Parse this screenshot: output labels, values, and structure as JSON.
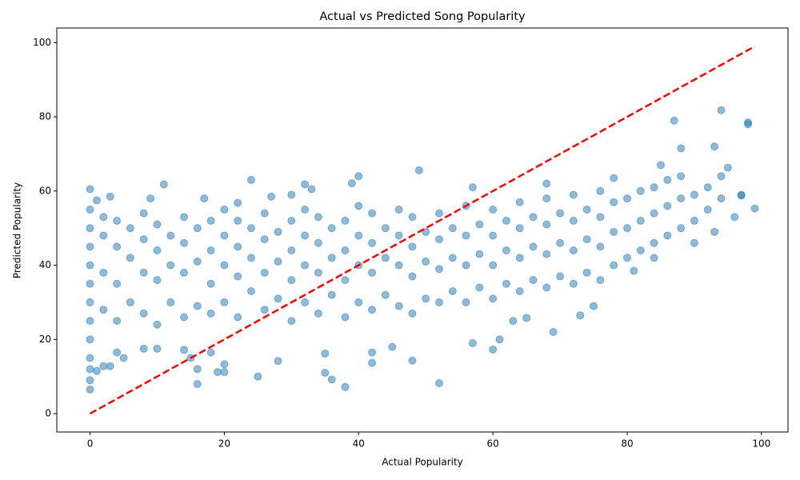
{
  "chart_data": {
    "type": "scatter",
    "title": "Actual vs Predicted Song Popularity",
    "x_label": "Actual Popularity",
    "y_label": "Predicted Popularity",
    "xlim": [
      -4.95,
      103.95
    ],
    "ylim": [
      -4.95,
      103.95
    ],
    "xticks": [
      0,
      20,
      40,
      60,
      80,
      100
    ],
    "yticks": [
      0,
      20,
      40,
      60,
      80,
      100
    ],
    "grid": false,
    "series": [
      {
        "color": "#1f77b4",
        "x": [
          0,
          0,
          0,
          0,
          0,
          0,
          0,
          0,
          0,
          2,
          2,
          2,
          2,
          4,
          4,
          4,
          4,
          6,
          6,
          6,
          8,
          8,
          8,
          8,
          10,
          10,
          10,
          10,
          12,
          12,
          12,
          14,
          14,
          14,
          14,
          16,
          16,
          16,
          18,
          18,
          18,
          18,
          20,
          20,
          20,
          20,
          22,
          22,
          22,
          22,
          24,
          24,
          24,
          26,
          26,
          26,
          26,
          28,
          28,
          28,
          30,
          30,
          30,
          30,
          32,
          32,
          32,
          32,
          34,
          34,
          34,
          34,
          36,
          36,
          36,
          38,
          38,
          38,
          38,
          40,
          40,
          40,
          40,
          42,
          42,
          42,
          42,
          44,
          44,
          44,
          46,
          46,
          46,
          46,
          48,
          48,
          48,
          48,
          50,
          50,
          50,
          52,
          52,
          52,
          52,
          54,
          54,
          54,
          56,
          56,
          56,
          56,
          58,
          58,
          58,
          60,
          60,
          60,
          60,
          62,
          62,
          62,
          64,
          64,
          64,
          64,
          66,
          66,
          66,
          68,
          68,
          68,
          68,
          70,
          70,
          70,
          72,
          72,
          72,
          72,
          74,
          74,
          74,
          76,
          76,
          76,
          76,
          78,
          78,
          78,
          80,
          80,
          80,
          82,
          82,
          82,
          84,
          84,
          84,
          86,
          86,
          86,
          88,
          88,
          88,
          90,
          90,
          92,
          92,
          94,
          94,
          97,
          0,
          0,
          0,
          0,
          1,
          2,
          3,
          4,
          5,
          8,
          10,
          11,
          14,
          15,
          16,
          16,
          17,
          18,
          19,
          20,
          20,
          24,
          25,
          28,
          32,
          35,
          35,
          36,
          38,
          39,
          40,
          42,
          42,
          45,
          48,
          49,
          52,
          57,
          60,
          61,
          63,
          65,
          69,
          73,
          75,
          78,
          85,
          87,
          88,
          90,
          93,
          93,
          94,
          95,
          96,
          97,
          98,
          98,
          99,
          81,
          84,
          68,
          57,
          1,
          3,
          9,
          22,
          27,
          30,
          33
        ],
        "values": [
          20,
          30,
          40,
          50,
          55,
          35,
          45,
          25,
          15,
          28,
          38,
          48,
          53,
          25,
          35,
          45,
          52,
          30,
          42,
          50,
          27,
          38,
          47,
          54,
          24,
          36,
          44,
          51,
          30,
          40,
          48,
          26,
          38,
          46,
          53,
          29,
          41,
          50,
          27,
          35,
          44,
          52,
          30,
          40,
          48,
          55,
          26,
          37,
          45,
          52,
          33,
          42,
          50,
          28,
          38,
          47,
          54,
          31,
          41,
          49,
          25,
          36,
          44,
          52,
          30,
          40,
          48,
          55,
          27,
          38,
          46,
          53,
          32,
          42,
          50,
          26,
          36,
          44,
          52,
          30,
          40,
          48,
          56,
          28,
          38,
          46,
          54,
          32,
          42,
          50,
          29,
          40,
          48,
          55,
          27,
          37,
          45,
          53,
          31,
          41,
          49,
          30,
          39,
          47,
          54,
          33,
          42,
          50,
          30,
          40,
          48,
          56,
          34,
          43,
          51,
          31,
          40,
          48,
          55,
          35,
          44,
          52,
          33,
          42,
          50,
          57,
          36,
          45,
          53,
          34,
          43,
          51,
          58,
          37,
          46,
          54,
          35,
          44,
          52,
          59,
          38,
          47,
          55,
          36,
          45,
          53,
          60,
          40,
          49,
          57,
          42,
          50,
          58,
          44,
          52,
          60,
          46,
          54,
          61,
          48,
          56,
          63,
          50,
          58,
          64,
          52,
          59,
          55,
          61,
          58,
          64,
          59,
          6.5,
          9,
          12,
          60.5,
          11.5,
          12.8,
          12.8,
          16.5,
          15,
          17.5,
          17.5,
          61.8,
          17.2,
          15,
          8,
          12,
          58,
          16.5,
          11.2,
          11.2,
          13.3,
          63,
          10,
          14.2,
          61.8,
          11,
          16.2,
          9.2,
          7.2,
          62.1,
          64,
          13.7,
          16.5,
          18,
          14.3,
          65.6,
          8.2,
          19,
          17.3,
          20,
          25,
          25.8,
          22,
          26.5,
          29,
          63.5,
          67,
          79,
          71.5,
          46,
          72,
          49,
          81.8,
          66.3,
          53,
          58.8,
          78.5,
          78,
          55.3,
          38.5,
          42,
          62,
          61,
          57.5,
          58.5,
          58,
          56.8,
          58.5,
          59,
          60.5
        ]
      }
    ],
    "reference_line": {
      "x": [
        0,
        99
      ],
      "values": [
        0,
        99
      ],
      "color": "#ff0000",
      "style": "dashed"
    }
  }
}
